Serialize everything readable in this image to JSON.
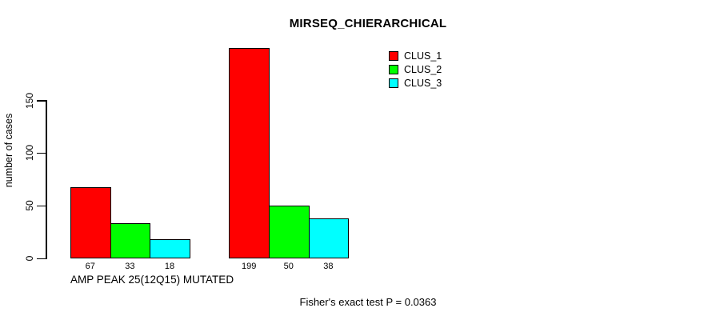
{
  "chart_data": {
    "type": "bar",
    "title": "MIRSEQ_CHIERARCHICAL",
    "ylabel": "number of cases",
    "xlabel": "",
    "ylim": [
      0,
      150
    ],
    "yticks": [
      0,
      50,
      100,
      150
    ],
    "grid": false,
    "legend_position": "top-right",
    "bar_layout": "grouped-beside",
    "categories": [
      "AMP PEAK 25(12Q15) MUTATED",
      ""
    ],
    "series": [
      {
        "name": "CLUS_1",
        "color": "#ff0000",
        "values": [
          67,
          199
        ]
      },
      {
        "name": "CLUS_2",
        "color": "#00ff00",
        "values": [
          33,
          50
        ]
      },
      {
        "name": "CLUS_3",
        "color": "#00ffff",
        "values": [
          18,
          38
        ]
      }
    ],
    "value_labels_shown": true,
    "annotation": "Fisher's exact test P = 0.0363"
  },
  "colors": {
    "background": "#ffffff",
    "axis": "#000000",
    "text": "#000000",
    "bar_border": "#000000"
  }
}
